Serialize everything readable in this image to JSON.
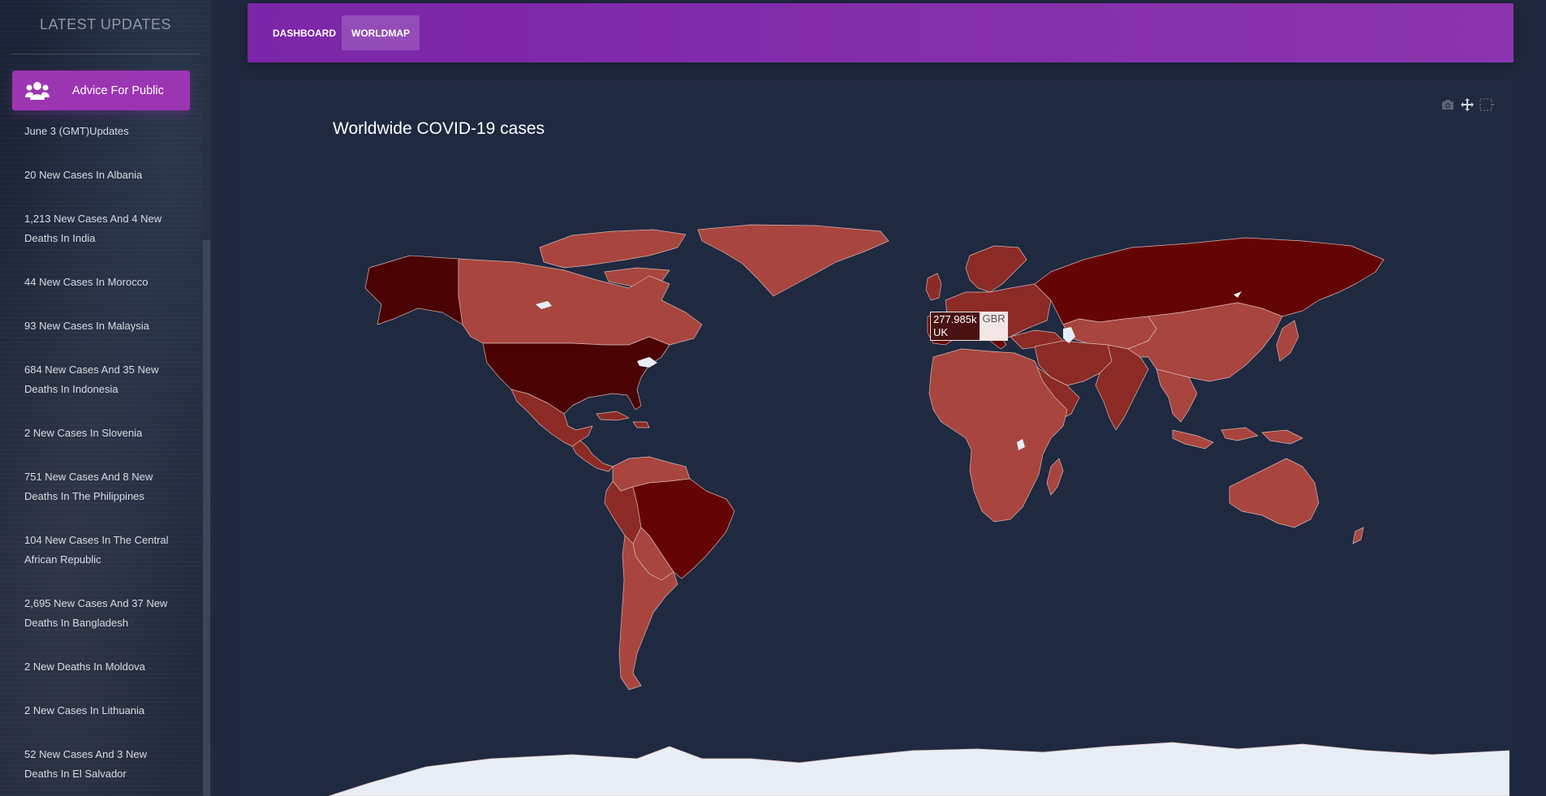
{
  "sidebar": {
    "title": "LATEST UPDATES",
    "advice_label": "Advice For Public",
    "advice_icon": "users-icon",
    "updates": [
      "June 3 (GMT)Updates",
      "20 New Cases In Albania",
      "1,213 New Cases And 4 New Deaths In India",
      "44 New Cases In Morocco",
      "93 New Cases In Malaysia",
      "684 New Cases And 35 New Deaths In Indonesia",
      "2 New Cases In Slovenia",
      "751 New Cases And 8 New Deaths In The Philippines",
      "104 New Cases In The Central African Republic",
      "2,695 New Cases And 37 New Deaths In Bangladesh",
      "2 New Deaths In Moldova",
      "2 New Cases In Lithuania",
      "52 New Cases And 3 New Deaths In El Salvador"
    ]
  },
  "navbar": {
    "tabs": [
      {
        "label": "DASHBOARD",
        "active": false
      },
      {
        "label": "WORLDMAP",
        "active": true
      }
    ]
  },
  "map": {
    "title": "Worldwide COVID-19 cases",
    "modebar": [
      "camera-icon",
      "pan-icon",
      "box-select-icon"
    ],
    "tooltip": {
      "value": "277.985k",
      "name": "UK",
      "code": "GBR"
    },
    "colors": {
      "ocean": "#1f2940",
      "low": "#a8453f",
      "medium": "#8c2b26",
      "high": "#650404",
      "highest": "#4a0202",
      "nodata": "#e8eef6",
      "border": "#d8b5b0"
    },
    "regions": [
      {
        "name": "Greenland",
        "level": "low"
      },
      {
        "name": "Alaska",
        "level": "highest"
      },
      {
        "name": "Canada",
        "level": "low"
      },
      {
        "name": "United States",
        "level": "highest"
      },
      {
        "name": "Mexico",
        "level": "medium"
      },
      {
        "name": "Brazil",
        "level": "high"
      },
      {
        "name": "Peru",
        "level": "medium"
      },
      {
        "name": "Russia",
        "level": "high"
      },
      {
        "name": "India",
        "level": "medium"
      },
      {
        "name": "China",
        "level": "low"
      },
      {
        "name": "Africa",
        "level": "low"
      },
      {
        "name": "Australia",
        "level": "low"
      },
      {
        "name": "Europe",
        "level": "medium"
      },
      {
        "name": "Antarctica",
        "level": "nodata"
      }
    ]
  }
}
